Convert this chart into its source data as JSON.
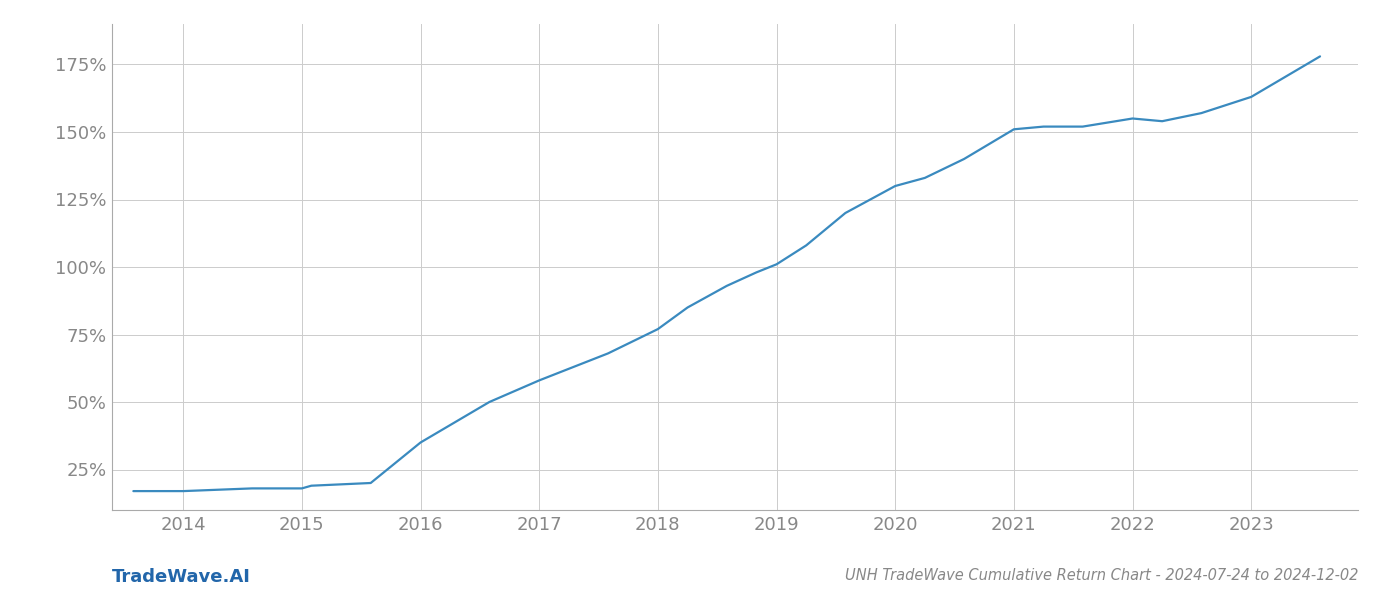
{
  "title": "UNH TradeWave Cumulative Return Chart - 2024-07-24 to 2024-12-02",
  "watermark": "TradeWave.AI",
  "line_color": "#3a8abf",
  "background_color": "#ffffff",
  "grid_color": "#cccccc",
  "axis_label_color": "#888888",
  "watermark_color": "#2266aa",
  "x_years": [
    2014,
    2015,
    2016,
    2017,
    2018,
    2019,
    2020,
    2021,
    2022,
    2023
  ],
  "x_data": [
    2013.58,
    2014.0,
    2014.58,
    2015.0,
    2015.08,
    2015.58,
    2016.0,
    2016.58,
    2017.0,
    2017.58,
    2018.0,
    2018.25,
    2018.58,
    2018.83,
    2019.0,
    2019.25,
    2019.58,
    2020.0,
    2020.25,
    2020.58,
    2021.0,
    2021.25,
    2021.58,
    2022.0,
    2022.25,
    2022.58,
    2023.0,
    2023.58
  ],
  "y_data": [
    17,
    17,
    18,
    18,
    19,
    20,
    35,
    50,
    58,
    68,
    77,
    85,
    93,
    98,
    101,
    108,
    120,
    130,
    133,
    140,
    151,
    152,
    152,
    155,
    154,
    157,
    163,
    178
  ],
  "yticks": [
    25,
    50,
    75,
    100,
    125,
    150,
    175
  ],
  "ylim": [
    10,
    190
  ],
  "xlim": [
    2013.4,
    2023.9
  ],
  "title_fontsize": 10.5,
  "watermark_fontsize": 13,
  "tick_fontsize": 13,
  "line_width": 1.6
}
